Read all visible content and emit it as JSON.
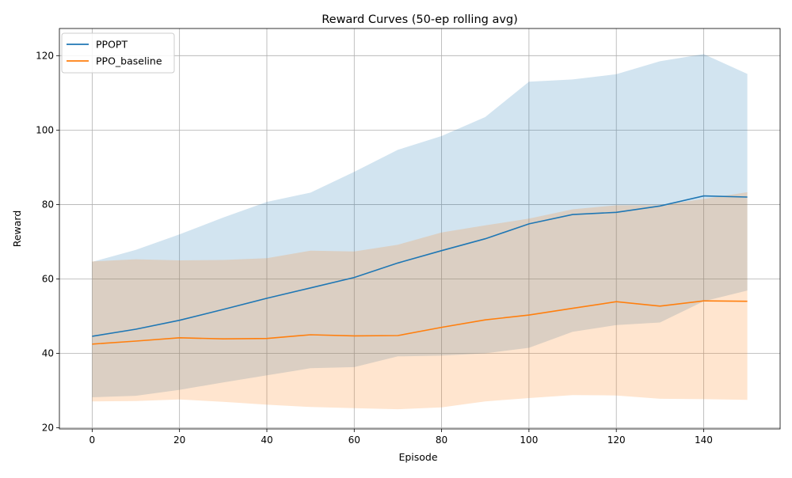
{
  "chart_data": {
    "type": "line",
    "title": "Reward Curves (50-ep rolling avg)",
    "xlabel": "Episode",
    "ylabel": "Reward",
    "xlim": [
      -7.5,
      157.5
    ],
    "ylim": [
      19.7,
      127.3
    ],
    "xticks": [
      0,
      20,
      40,
      60,
      80,
      100,
      120,
      140
    ],
    "yticks": [
      20,
      40,
      60,
      80,
      100,
      120
    ],
    "grid": true,
    "legend_position": "top-left",
    "x": [
      0,
      10,
      20,
      30,
      40,
      50,
      60,
      70,
      80,
      90,
      100,
      110,
      120,
      130,
      140,
      150
    ],
    "series": [
      {
        "name": "PPOPT",
        "color": "#1f77b4",
        "values": [
          44.6,
          46.5,
          48.9,
          51.8,
          54.8,
          57.6,
          60.4,
          64.3,
          67.6,
          70.8,
          74.8,
          77.3,
          77.9,
          79.6,
          82.3,
          82.0
        ],
        "band_upper": [
          64.6,
          67.8,
          72.0,
          76.5,
          80.7,
          83.2,
          88.8,
          94.7,
          98.4,
          103.5,
          113.0,
          113.6,
          115.0,
          118.5,
          120.4,
          115.1
        ],
        "band_lower": [
          28.2,
          28.6,
          30.2,
          32.2,
          34.1,
          36.0,
          36.3,
          39.2,
          39.4,
          40.0,
          41.5,
          45.8,
          47.6,
          48.3,
          54.0,
          56.9
        ]
      },
      {
        "name": "PPO_baseline",
        "color": "#ff7f0e",
        "values": [
          42.5,
          43.3,
          44.2,
          43.9,
          44.0,
          45.0,
          44.7,
          44.8,
          47.0,
          49.0,
          50.3,
          52.1,
          53.9,
          52.7,
          54.1,
          54.0
        ],
        "band_upper": [
          64.7,
          65.3,
          65.0,
          65.1,
          65.6,
          67.6,
          67.4,
          69.2,
          72.5,
          74.4,
          76.2,
          78.7,
          79.8,
          79.8,
          81.5,
          83.3
        ],
        "band_lower": [
          27.1,
          27.2,
          27.6,
          27.0,
          26.2,
          25.6,
          25.3,
          25.0,
          25.5,
          27.1,
          28.0,
          28.8,
          28.7,
          27.8,
          27.7,
          27.5
        ]
      }
    ]
  }
}
